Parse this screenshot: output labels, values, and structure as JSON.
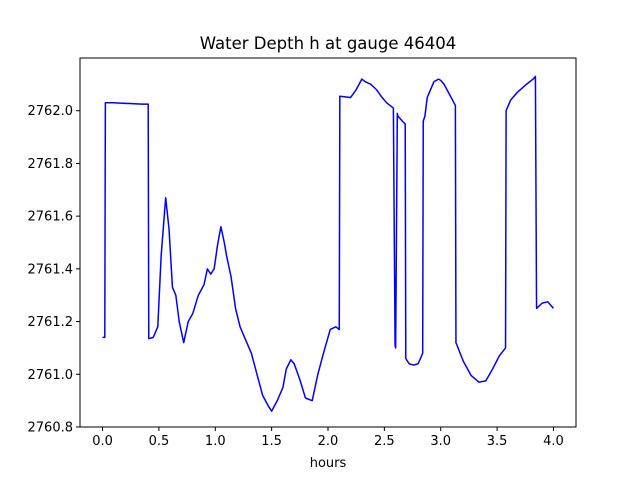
{
  "chart_data": {
    "type": "line",
    "title": "Water Depth h at gauge 46404",
    "xlabel": "hours",
    "ylabel": "",
    "xlim": [
      -0.2,
      4.2
    ],
    "ylim": [
      2760.8,
      2762.2
    ],
    "xticks": [
      0.0,
      0.5,
      1.0,
      1.5,
      2.0,
      2.5,
      3.0,
      3.5,
      4.0
    ],
    "xtick_labels": [
      "0.0",
      "0.5",
      "1.0",
      "1.5",
      "2.0",
      "2.5",
      "3.0",
      "3.5",
      "4.0"
    ],
    "yticks": [
      2760.8,
      2761.0,
      2761.2,
      2761.4,
      2761.6,
      2761.8,
      2762.0
    ],
    "ytick_labels": [
      "2760.8",
      "2761.0",
      "2761.2",
      "2761.4",
      "2761.6",
      "2761.8",
      "2762.0"
    ],
    "grid": false,
    "series": [
      {
        "color": "#0000ff",
        "x": [
          0.0,
          0.02,
          0.025,
          0.1,
          0.2,
          0.3,
          0.35,
          0.405,
          0.41,
          0.45,
          0.49,
          0.52,
          0.56,
          0.59,
          0.62,
          0.65,
          0.68,
          0.72,
          0.76,
          0.8,
          0.85,
          0.9,
          0.93,
          0.96,
          0.99,
          1.02,
          1.05,
          1.08,
          1.1,
          1.14,
          1.18,
          1.22,
          1.27,
          1.32,
          1.37,
          1.42,
          1.47,
          1.5,
          1.55,
          1.6,
          1.63,
          1.67,
          1.7,
          1.75,
          1.8,
          1.86,
          1.91,
          1.96,
          2.02,
          2.07,
          2.1,
          2.105,
          2.2,
          2.25,
          2.3,
          2.33,
          2.38,
          2.43,
          2.48,
          2.52,
          2.58,
          2.595,
          2.6,
          2.615,
          2.62,
          2.66,
          2.685,
          2.69,
          2.72,
          2.76,
          2.8,
          2.84,
          2.845,
          2.86,
          2.88,
          2.94,
          2.98,
          3.0,
          3.03,
          3.08,
          3.13,
          3.135,
          3.2,
          3.27,
          3.34,
          3.4,
          3.46,
          3.52,
          3.575,
          3.58,
          3.62,
          3.68,
          3.76,
          3.82,
          3.84,
          3.85,
          3.9,
          3.95,
          4.0
        ],
        "y": [
          2761.14,
          2761.14,
          2762.03,
          2762.03,
          2762.028,
          2762.026,
          2762.025,
          2762.025,
          2761.135,
          2761.14,
          2761.18,
          2761.45,
          2761.67,
          2761.55,
          2761.33,
          2761.3,
          2761.2,
          2761.12,
          2761.2,
          2761.23,
          2761.3,
          2761.34,
          2761.4,
          2761.38,
          2761.4,
          2761.49,
          2761.56,
          2761.5,
          2761.45,
          2761.37,
          2761.25,
          2761.18,
          2761.13,
          2761.08,
          2761.0,
          2760.92,
          2760.88,
          2760.86,
          2760.9,
          2760.95,
          2761.02,
          2761.055,
          2761.04,
          2760.98,
          2760.91,
          2760.9,
          2761.0,
          2761.08,
          2761.17,
          2761.18,
          2761.17,
          2762.055,
          2762.05,
          2762.08,
          2762.12,
          2762.11,
          2762.1,
          2762.08,
          2762.05,
          2762.03,
          2762.01,
          2761.11,
          2761.1,
          2761.99,
          2761.98,
          2761.96,
          2761.95,
          2761.06,
          2761.04,
          2761.035,
          2761.04,
          2761.08,
          2761.96,
          2761.98,
          2762.05,
          2762.11,
          2762.12,
          2762.115,
          2762.1,
          2762.06,
          2762.02,
          2761.12,
          2761.05,
          2760.995,
          2760.97,
          2760.975,
          2761.02,
          2761.07,
          2761.1,
          2762.0,
          2762.04,
          2762.07,
          2762.1,
          2762.12,
          2762.13,
          2761.25,
          2761.27,
          2761.275,
          2761.25
        ]
      }
    ]
  }
}
